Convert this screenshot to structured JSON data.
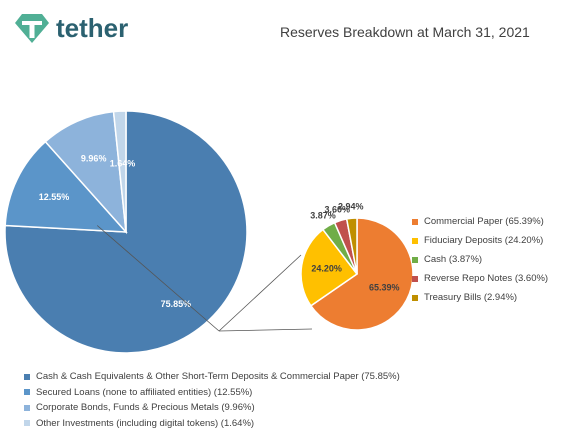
{
  "header": {
    "brand": "tether",
    "title": "Reserves Breakdown at March 31, 2021"
  },
  "colors": {
    "brand": "#50af95",
    "brand_text": "#2b6170",
    "leader_line": "#555555"
  },
  "chart_data": [
    {
      "type": "pie",
      "name": "Reserves",
      "categories": [
        "Cash & Cash Equivalents & Other Short-Term Deposits & Commercial Paper",
        "Secured Loans (none to affiliated entities)",
        "Corporate Bonds, Funds & Precious Metals",
        "Other Investments (including digital tokens)"
      ],
      "values": [
        75.85,
        12.55,
        9.96,
        1.64
      ],
      "data_labels": [
        "75.85%",
        "12.55%",
        "9.96%",
        "1.64%"
      ],
      "legend_entries": [
        "Cash & Cash Equivalents & Other Short-Term Deposits & Commercial Paper (75.85%)",
        "Secured Loans (none to affiliated entities) (12.55%)",
        "Corporate Bonds, Funds & Precious Metals (9.96%)",
        "Other Investments (including digital tokens) (1.64%)"
      ],
      "colors": [
        "#4a7eb0",
        "#5b95c9",
        "#8db3db",
        "#c1d6ea"
      ],
      "legend_position": "bottom"
    },
    {
      "type": "pie",
      "name": "Cash & Cash Equivalents & Other Short-Term Deposits & Commercial Paper breakdown",
      "categories": [
        "Commercial Paper",
        "Fiduciary Deposits",
        "Cash",
        "Reverse Repo Notes",
        "Treasury Bills"
      ],
      "values": [
        65.39,
        24.2,
        3.87,
        3.6,
        2.94
      ],
      "data_labels": [
        "65.39%",
        "24.20%",
        "3.87%",
        "3.60%",
        "2.94%"
      ],
      "legend_entries": [
        "Commercial Paper (65.39%)",
        "Fiduciary Deposits (24.20%)",
        "Cash (3.87%)",
        "Reverse Repo Notes (3.60%)",
        "Treasury Bills (2.94%)"
      ],
      "colors": [
        "#ed7d31",
        "#ffc000",
        "#70ad47",
        "#c0504d",
        "#bf8f00"
      ],
      "legend_position": "right"
    }
  ]
}
